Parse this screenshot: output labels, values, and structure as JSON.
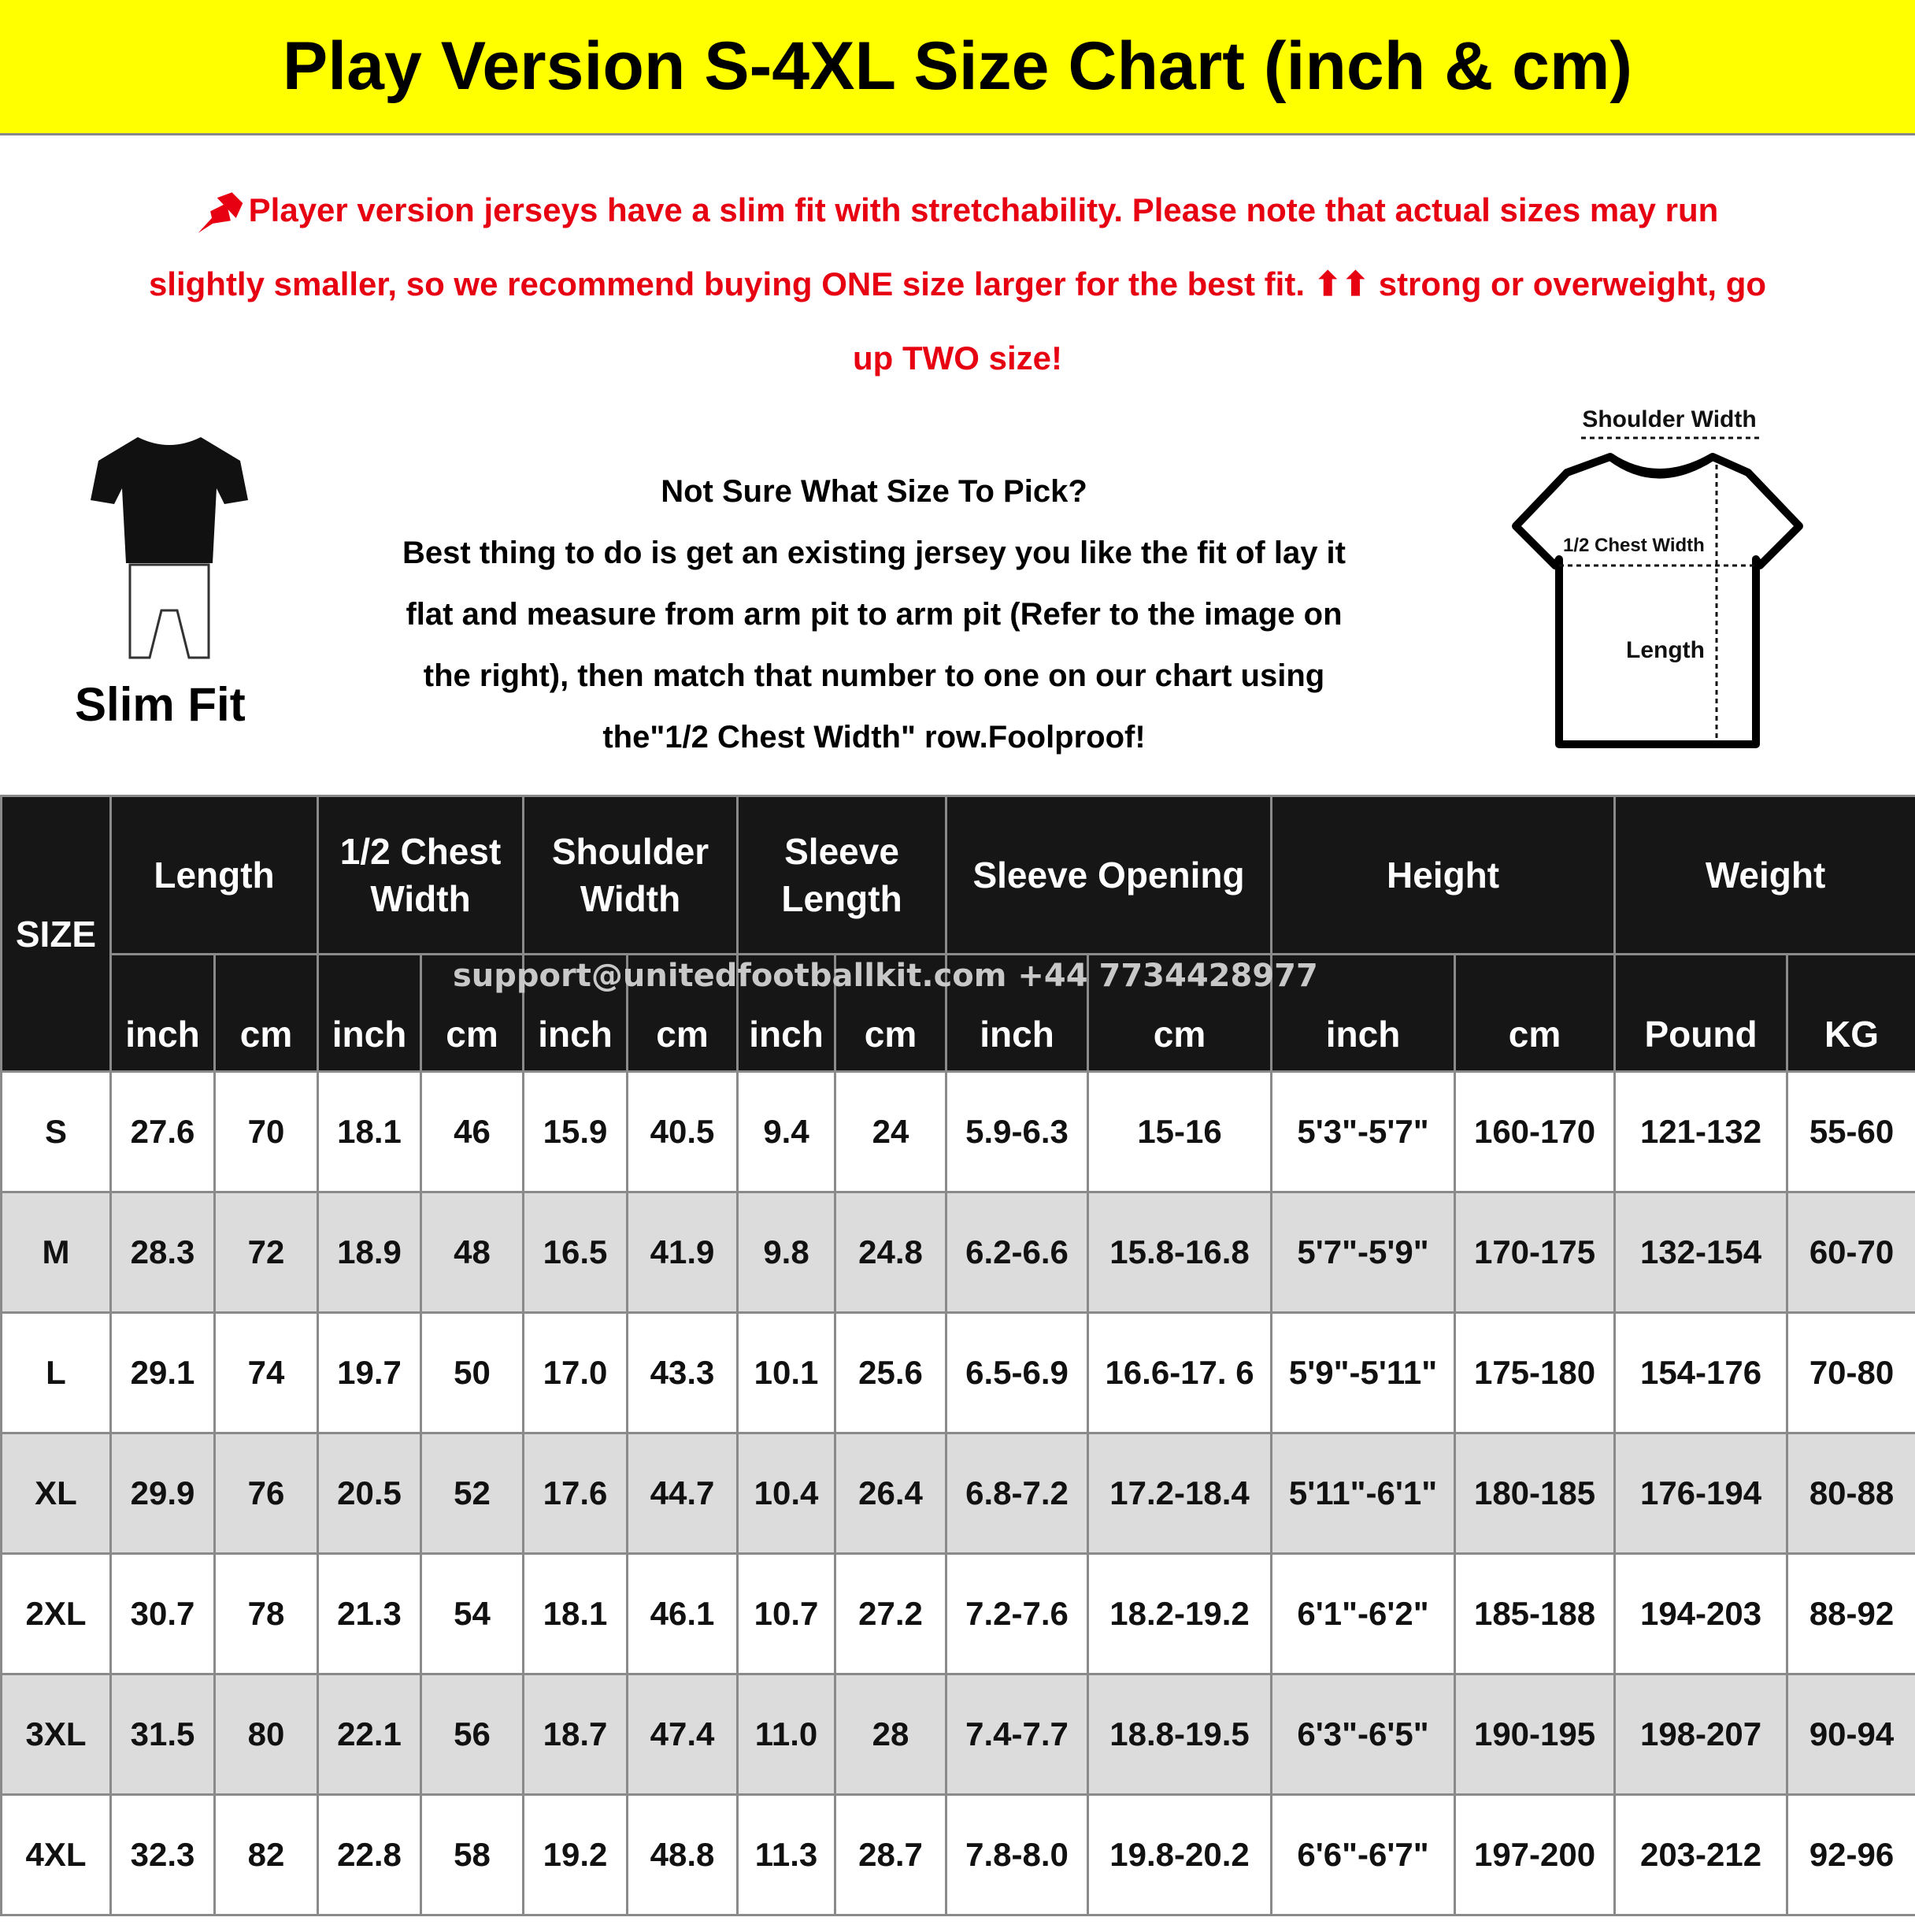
{
  "title": "Play Version S-4XL Size Chart (inch & cm)",
  "notice": {
    "icon": "pushpin-icon",
    "lines": [
      "Player version jerseys have a slim fit with stretchability. Please note that actual sizes may run",
      "slightly smaller, so we recommend buying ONE size larger for the best fit. ⬆⬆ strong or overweight, go",
      "up TWO size!"
    ]
  },
  "slim_fit": {
    "label": "Slim Fit"
  },
  "guide": {
    "heading": "Not Sure What Size To Pick?",
    "lines": [
      "Best thing to do is get an existing jersey you like the fit of lay it",
      "flat and measure from arm pit to arm pit (Refer to the image on",
      "the right), then match that number to one on our chart using",
      "the\"1/2 Chest Width\" row.Foolproof!"
    ]
  },
  "diagram": {
    "shoulder_width": "Shoulder Width",
    "chest_width": "1/2 Chest Width",
    "length": "Length"
  },
  "watermark": "support@unitedfootballkit.com  +44 7734428977",
  "colors": {
    "title_bg": "#ffff00",
    "notice_text": "#e60012",
    "header_bg": "#161616",
    "alt_row": "#dcdcdc"
  },
  "table": {
    "size_header": "SIZE",
    "groups": [
      {
        "label1": "Length",
        "label2": "",
        "units": [
          "inch",
          "cm"
        ]
      },
      {
        "label1": "1/2 Chest",
        "label2": "Width",
        "units": [
          "inch",
          "cm"
        ]
      },
      {
        "label1": "Shoulder",
        "label2": "Width",
        "units": [
          "inch",
          "cm"
        ]
      },
      {
        "label1": "Sleeve",
        "label2": "Length",
        "units": [
          "inch",
          "cm"
        ]
      },
      {
        "label1": "Sleeve Opening",
        "label2": "",
        "units": [
          "inch",
          "cm"
        ]
      },
      {
        "label1": "Height",
        "label2": "",
        "units": [
          "inch",
          "cm"
        ]
      },
      {
        "label1": "Weight",
        "label2": "",
        "units": [
          "Pound",
          "KG"
        ]
      }
    ],
    "rows": [
      [
        "S",
        "27.6",
        "70",
        "18.1",
        "46",
        "15.9",
        "40.5",
        "9.4",
        "24",
        "5.9-6.3",
        "15-16",
        "5'3\"-5'7\"",
        "160-170",
        "121-132",
        "55-60"
      ],
      [
        "M",
        "28.3",
        "72",
        "18.9",
        "48",
        "16.5",
        "41.9",
        "9.8",
        "24.8",
        "6.2-6.6",
        "15.8-16.8",
        "5'7\"-5'9\"",
        "170-175",
        "132-154",
        "60-70"
      ],
      [
        "L",
        "29.1",
        "74",
        "19.7",
        "50",
        "17.0",
        "43.3",
        "10.1",
        "25.6",
        "6.5-6.9",
        "16.6-17. 6",
        "5'9\"-5'11\"",
        "175-180",
        "154-176",
        "70-80"
      ],
      [
        "XL",
        "29.9",
        "76",
        "20.5",
        "52",
        "17.6",
        "44.7",
        "10.4",
        "26.4",
        "6.8-7.2",
        "17.2-18.4",
        "5'11\"-6'1\"",
        "180-185",
        "176-194",
        "80-88"
      ],
      [
        "2XL",
        "30.7",
        "78",
        "21.3",
        "54",
        "18.1",
        "46.1",
        "10.7",
        "27.2",
        "7.2-7.6",
        "18.2-19.2",
        "6'1\"-6'2\"",
        "185-188",
        "194-203",
        "88-92"
      ],
      [
        "3XL",
        "31.5",
        "80",
        "22.1",
        "56",
        "18.7",
        "47.4",
        "11.0",
        "28",
        "7.4-7.7",
        "18.8-19.5",
        "6'3\"-6'5\"",
        "190-195",
        "198-207",
        "90-94"
      ],
      [
        "4XL",
        "32.3",
        "82",
        "22.8",
        "58",
        "19.2",
        "48.8",
        "11.3",
        "28.7",
        "7.8-8.0",
        "19.8-20.2",
        "6'6\"-6'7\"",
        "197-200",
        "203-212",
        "92-96"
      ]
    ]
  }
}
